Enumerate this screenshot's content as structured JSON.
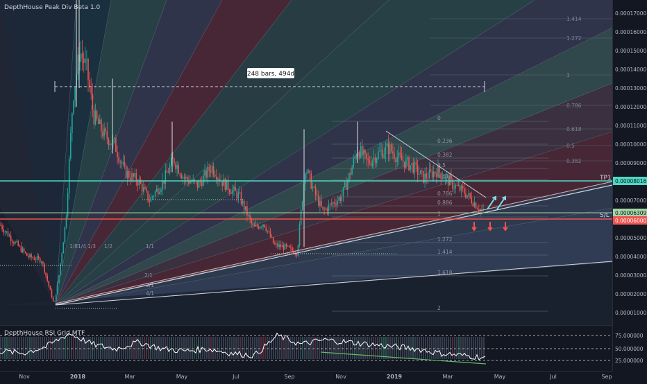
{
  "indicators": {
    "main_label": "DepthHouse Peak Div Beta 1.0",
    "rsi_label": "DepthHouse RSI Grid MTF"
  },
  "measure": {
    "label": "248 bars, 494d"
  },
  "lines": {
    "tp1": "TP1",
    "sl": "S/L"
  },
  "price_axis": {
    "ticks": [
      "0.00017000",
      "0.00016000",
      "0.00015000",
      "0.00014000",
      "0.00013000",
      "0.00012000",
      "0.00011000",
      "0.00010000",
      "0.00009000",
      "0.00008000",
      "0.00007000",
      "0.00006000",
      "0.00005000",
      "0.00004000",
      "0.00003000",
      "0.00002000",
      "0.00001000"
    ],
    "tp1_value": "0.00008016",
    "current_value": "0.00006309",
    "sl_value": "0.00006000"
  },
  "rsi_axis": {
    "ticks": [
      "75.000000",
      "50.000000",
      "25.000000"
    ]
  },
  "time_axis": {
    "ticks": [
      "Nov",
      "2018",
      "Mar",
      "May",
      "Jul",
      "Sep",
      "Nov",
      "2019",
      "Mar",
      "May",
      "Jul",
      "Sep"
    ]
  },
  "fib_levels": [
    "0",
    "0.236",
    "0.382",
    "0.5",
    "0.618",
    "0.786",
    "0.886",
    "1",
    "1.272",
    "1.414",
    "1.618",
    "2"
  ],
  "fib_ext_levels": [
    "1.414",
    "1.272",
    "1",
    "0.786",
    "0.618",
    "0.5",
    "0.382"
  ],
  "fan_labels": [
    "1/8",
    "1/4",
    "1/3",
    "1/2",
    "1/1",
    "2/1",
    "3/1",
    "4/1"
  ],
  "colors": {
    "background": "#131722",
    "tp1_line": "#4fd8c4",
    "sl_line": "#ef5350",
    "current_price": "#a5d6a7",
    "candle_up": "#26a69a",
    "candle_down": "#ef5350",
    "arrow_up": "#80deea",
    "arrow_down": "#ef5350"
  },
  "chart_data": [
    {
      "type": "candlestick",
      "price_range": [
        5e-06,
        0.000178
      ],
      "close_path": [
        {
          "date": "Nov",
          "price": 4.5e-05
        },
        {
          "date": "Dec",
          "price": 1.4e-05
        },
        {
          "date": "2018",
          "price": 0.000155
        },
        {
          "date": "Mar",
          "price": 7.8e-05
        },
        {
          "date": "May",
          "price": 9.2e-05
        },
        {
          "date": "Jul",
          "price": 7.2e-05
        },
        {
          "date": "Sep",
          "price": 4.2e-05
        },
        {
          "date": "Sep-late",
          "price": 8.8e-05
        },
        {
          "date": "Nov",
          "price": 9.2e-05
        },
        {
          "date": "2019",
          "price": 9.8e-05
        },
        {
          "date": "Mar",
          "price": 7.8e-05
        },
        {
          "date": "Apr",
          "price": 6.3e-05
        }
      ],
      "horizontal_lines": {
        "tp1": 8.016e-05,
        "sl": 6e-05,
        "current": 6.309e-05
      }
    },
    {
      "type": "line",
      "series": [
        {
          "name": "DepthHouse RSI Grid MTF",
          "values": [
            40,
            35,
            50,
            80,
            55,
            45,
            60,
            45,
            40,
            45,
            35,
            30,
            75,
            55,
            65,
            60,
            55,
            50,
            45,
            35,
            30,
            25
          ]
        }
      ],
      "ylim": [
        0,
        100
      ],
      "levels": [
        75,
        50,
        25
      ]
    }
  ]
}
